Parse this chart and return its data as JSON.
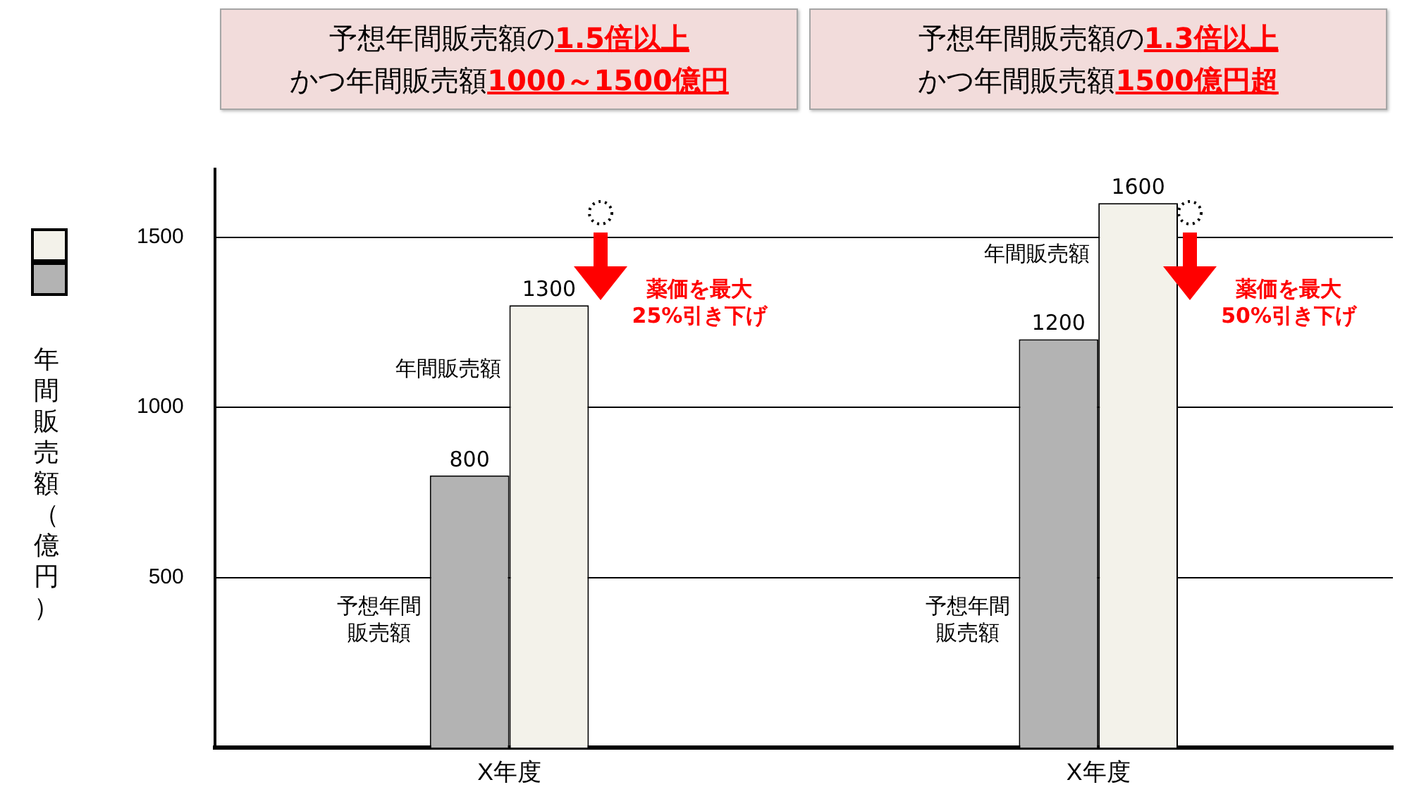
{
  "chart_data": {
    "type": "bar",
    "categories": [
      "X年度",
      "X年度"
    ],
    "ylabel": "年間販売額（億円）",
    "ylim": [
      0,
      1700
    ],
    "yticks": [
      500,
      1000,
      1500
    ],
    "grid": "y",
    "data_labels": true,
    "series": [
      {
        "name": "予想年間販売額",
        "color": "#b3b3b3",
        "values": [
          800,
          1200
        ]
      },
      {
        "name": "年間販売額",
        "color": "#f3f2ea",
        "values": [
          1300,
          1600
        ]
      }
    ],
    "annotations": [
      "予想年間販売額の",
      "1.5倍以上",
      "かつ年間販売額",
      "1000～1500億円",
      "予想年間販売額の",
      "1.3倍以上",
      "かつ年間販売額",
      "1500億円超",
      "薬価を最大",
      "25%引き下げ",
      "薬価を最大",
      "50%引き下げ"
    ]
  }
}
